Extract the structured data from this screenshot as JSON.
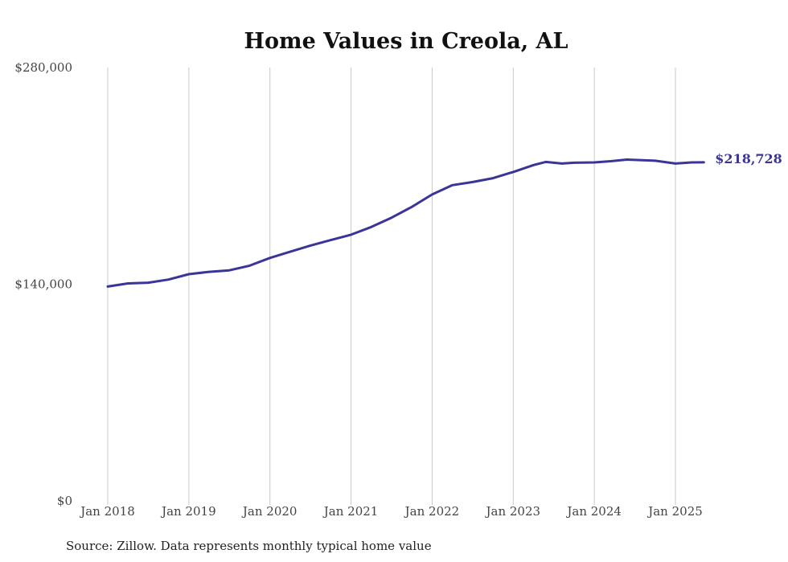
{
  "chart_data": {
    "type": "line",
    "title": "Home Values in Creola, AL",
    "source": "Source: Zillow. Data represents monthly typical home value",
    "ylim": [
      0,
      280000
    ],
    "y_ticks": [
      {
        "value": 0,
        "label": "$0"
      },
      {
        "value": 140000,
        "label": "$140,000"
      },
      {
        "value": 280000,
        "label": "$280,000"
      }
    ],
    "x_ticks": [
      {
        "value": 2018,
        "label": "Jan 2018"
      },
      {
        "value": 2019,
        "label": "Jan 2019"
      },
      {
        "value": 2020,
        "label": "Jan 2020"
      },
      {
        "value": 2021,
        "label": "Jan 2021"
      },
      {
        "value": 2022,
        "label": "Jan 2022"
      },
      {
        "value": 2023,
        "label": "Jan 2023"
      },
      {
        "value": 2024,
        "label": "Jan 2024"
      },
      {
        "value": 2025,
        "label": "Jan 2025"
      }
    ],
    "grid": "vertical",
    "series": [
      {
        "color": "#3a3596",
        "end_label": "$218,728",
        "points": [
          [
            2018.0,
            138500
          ],
          [
            2018.25,
            140500
          ],
          [
            2018.5,
            141000
          ],
          [
            2018.75,
            143000
          ],
          [
            2019.0,
            146500
          ],
          [
            2019.25,
            148000
          ],
          [
            2019.5,
            149000
          ],
          [
            2019.75,
            152000
          ],
          [
            2020.0,
            157000
          ],
          [
            2020.25,
            161000
          ],
          [
            2020.5,
            165000
          ],
          [
            2020.75,
            168500
          ],
          [
            2021.0,
            172000
          ],
          [
            2021.25,
            177000
          ],
          [
            2021.5,
            183000
          ],
          [
            2021.75,
            190000
          ],
          [
            2022.0,
            198000
          ],
          [
            2022.25,
            204000
          ],
          [
            2022.5,
            206000
          ],
          [
            2022.75,
            208500
          ],
          [
            2023.0,
            212500
          ],
          [
            2023.25,
            217000
          ],
          [
            2023.4,
            219000
          ],
          [
            2023.6,
            218000
          ],
          [
            2023.75,
            218500
          ],
          [
            2024.0,
            218700
          ],
          [
            2024.2,
            219500
          ],
          [
            2024.4,
            220500
          ],
          [
            2024.75,
            219800
          ],
          [
            2025.0,
            218000
          ],
          [
            2025.2,
            218700
          ],
          [
            2025.35,
            218728
          ]
        ]
      }
    ]
  }
}
